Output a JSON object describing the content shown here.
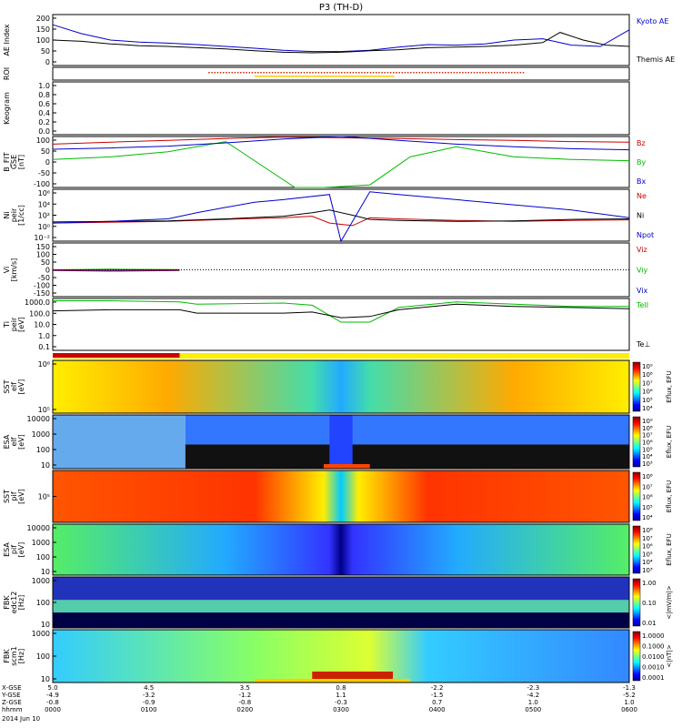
{
  "title": "P3 (TH-D)",
  "colors": {
    "kyoto": "#0000cc",
    "themis": "#000000",
    "red": "#cc0000",
    "green": "#00bb00",
    "blue": "#0000cc",
    "roi_red": "#cc2200",
    "roi_yellow": "#ffcc00"
  },
  "chart_data": [
    {
      "type": "line",
      "id": "ae",
      "ylabel": "AE Index",
      "ylim": [
        0,
        200
      ],
      "yticks": [
        "200",
        "150",
        "100",
        "50",
        "0"
      ],
      "series": [
        {
          "name": "Kyoto AE",
          "color": "#0000cc",
          "x": [
            0,
            5,
            10,
            15,
            20,
            25,
            30,
            35,
            40,
            45,
            50,
            55,
            60,
            65,
            70,
            75,
            80,
            85,
            90,
            95,
            100
          ],
          "y": [
            160,
            125,
            100,
            92,
            88,
            82,
            75,
            68,
            60,
            55,
            55,
            60,
            72,
            82,
            80,
            85,
            100,
            105,
            80,
            75,
            140
          ]
        },
        {
          "name": "Themis AE",
          "color": "#000000",
          "x": [
            0,
            5,
            10,
            15,
            20,
            25,
            30,
            35,
            40,
            45,
            50,
            55,
            60,
            65,
            70,
            75,
            80,
            85,
            88,
            92,
            96,
            100
          ],
          "y": [
            100,
            95,
            85,
            78,
            75,
            70,
            65,
            58,
            52,
            50,
            52,
            58,
            62,
            70,
            72,
            75,
            80,
            90,
            130,
            100,
            80,
            75
          ]
        }
      ]
    },
    {
      "type": "line",
      "id": "roi",
      "ylabel": "ROI",
      "ylim": [
        0,
        1
      ],
      "series": []
    },
    {
      "type": "line",
      "id": "keogram",
      "ylabel": "Keogram",
      "ylim": [
        0,
        1
      ],
      "yticks": [
        "1.0",
        "0.8",
        "0.6",
        "0.4",
        "0.2",
        "0.0"
      ],
      "series": []
    },
    {
      "type": "line",
      "id": "bfit",
      "ylabel": "B_FIT",
      "ylabel2": "GSE",
      "ylabel3": "[nT]",
      "ylim": [
        -100,
        100
      ],
      "yticks": [
        "100",
        "50",
        "0",
        "-50",
        "-100"
      ],
      "series": [
        {
          "name": "Bz",
          "color": "#cc0000",
          "x": [
            0,
            10,
            20,
            30,
            40,
            50,
            60,
            70,
            80,
            90,
            100
          ],
          "y": [
            70,
            78,
            85,
            92,
            98,
            95,
            92,
            88,
            85,
            80,
            78
          ]
        },
        {
          "name": "By",
          "color": "#00bb00",
          "x": [
            0,
            10,
            20,
            30,
            42,
            47,
            55,
            62,
            70,
            80,
            90,
            100
          ],
          "y": [
            10,
            20,
            40,
            80,
            -100,
            -100,
            -90,
            20,
            60,
            20,
            10,
            5
          ]
        },
        {
          "name": "Bx",
          "color": "#0000cc",
          "x": [
            0,
            10,
            20,
            30,
            40,
            50,
            60,
            70,
            80,
            90,
            100
          ],
          "y": [
            50,
            55,
            62,
            75,
            90,
            100,
            85,
            70,
            60,
            52,
            48
          ]
        }
      ]
    },
    {
      "type": "line",
      "id": "ni",
      "ylabel": "Ni",
      "ylabel2": "peir",
      "ylabel3": "[1/cc]",
      "ylim": [
        -4,
        6
      ],
      "yscale": "log",
      "yticks": [
        "10⁶",
        "10⁴",
        "10²",
        "10⁰",
        "10⁻²"
      ],
      "series": [
        {
          "name": "Ne",
          "color": "#cc0000",
          "x": [
            0,
            20,
            30,
            40,
            45,
            48,
            52,
            55,
            60,
            70,
            80,
            90,
            100
          ],
          "y": [
            -0.5,
            -0.2,
            0.2,
            0.5,
            0.8,
            -0.5,
            -1,
            0.5,
            0.3,
            0,
            -0.2,
            0,
            0.1
          ]
        },
        {
          "name": "Ni",
          "color": "#000000",
          "x": [
            0,
            20,
            30,
            40,
            45,
            48,
            52,
            55,
            60,
            70,
            80,
            90,
            100
          ],
          "y": [
            -0.3,
            -0.1,
            0.3,
            0.8,
            1.5,
            2,
            1,
            0.2,
            0,
            -0.2,
            -0.1,
            0.2,
            0.3
          ]
        },
        {
          "name": "Npot",
          "color": "#0000cc",
          "x": [
            0,
            10,
            20,
            25,
            30,
            35,
            40,
            48,
            50,
            55,
            60,
            70,
            80,
            90,
            100
          ],
          "y": [
            -0.5,
            -0.2,
            0.3,
            1.5,
            2.5,
            3.5,
            4,
            5,
            -4,
            5.5,
            5,
            4,
            3,
            2,
            0.5
          ]
        }
      ]
    },
    {
      "type": "line",
      "id": "vi",
      "ylabel": "Vi",
      "ylabel2": "[km/s]",
      "ylim": [
        -200,
        200
      ],
      "yticks": [
        "150",
        "100",
        "50",
        "0",
        "-50",
        "-100",
        "-150"
      ],
      "series": [
        {
          "name": "Viz",
          "color": "#cc0000",
          "x": [
            0,
            10,
            22
          ],
          "y": [
            -5,
            -10,
            -5
          ]
        },
        {
          "name": "Viy",
          "color": "#00bb00",
          "x": [
            0,
            10,
            22
          ],
          "y": [
            0,
            5,
            2
          ]
        },
        {
          "name": "Vix",
          "color": "#0000cc",
          "x": [
            0,
            10,
            22
          ],
          "y": [
            -2,
            -3,
            -2
          ]
        }
      ]
    },
    {
      "type": "line",
      "id": "ti",
      "ylabel": "Ti",
      "ylabel2": "peir",
      "ylabel3": "[eV]",
      "ylim": [
        -1.3,
        3.3
      ],
      "yscale": "log",
      "yticks": [
        "1000.0",
        "100.0",
        "10.0",
        "1.0",
        "0.1"
      ],
      "series": [
        {
          "name": "TeII",
          "color": "#00bb00",
          "x": [
            0,
            10,
            22,
            25,
            40,
            45,
            50,
            55,
            60,
            70,
            80,
            90,
            100
          ],
          "y": [
            3.1,
            3.1,
            3.0,
            2.8,
            2.9,
            2.7,
            1.2,
            1.2,
            2.5,
            3.0,
            2.8,
            2.6,
            2.6
          ]
        },
        {
          "name": "Te⊥",
          "color": "#000000",
          "x": [
            0,
            10,
            22,
            25,
            40,
            45,
            50,
            55,
            60,
            70,
            80,
            90,
            100
          ],
          "y": [
            2.2,
            2.3,
            2.3,
            2.0,
            2.0,
            2.1,
            1.6,
            1.7,
            2.3,
            2.8,
            2.6,
            2.5,
            2.4
          ]
        }
      ]
    },
    {
      "type": "heatmap",
      "id": "sst_e",
      "ylabel": "SST",
      "ylabel2": "elf",
      "ylabel3": "[eV]",
      "yticks": [
        "10⁶",
        "10⁵"
      ],
      "cbar_label": "Eflux, EFU",
      "cbar_ticks": [
        "10⁹",
        "10⁸",
        "10⁷",
        "10⁶",
        "10⁵",
        "10⁴"
      ]
    },
    {
      "type": "heatmap",
      "id": "esa_e",
      "ylabel": "ESA",
      "ylabel2": "elf",
      "ylabel3": "[eV]",
      "yticks": [
        "10000",
        "1000",
        "100",
        "10"
      ],
      "cbar_label": "Eflux, EFU",
      "cbar_ticks": [
        "10⁹",
        "10⁸",
        "10⁷",
        "10⁶",
        "10⁵",
        "10⁴",
        "10³"
      ]
    },
    {
      "type": "heatmap",
      "id": "sst_i",
      "ylabel": "SST",
      "ylabel2": "pif",
      "ylabel3": "[eV]",
      "yticks": [
        "10⁵"
      ],
      "cbar_label": "Eflux, EFU",
      "cbar_ticks": [
        "10⁸",
        "10⁷",
        "10⁶",
        "10⁵",
        "10⁴"
      ]
    },
    {
      "type": "heatmap",
      "id": "esa_i",
      "ylabel": "ESA",
      "ylabel2": "pif",
      "ylabel3": "[eV]",
      "yticks": [
        "10000",
        "1000",
        "100",
        "10"
      ],
      "cbar_label": "Eflux, EFU",
      "cbar_ticks": [
        "10⁸",
        "10⁷",
        "10⁶",
        "10⁵",
        "10⁴",
        "10³"
      ]
    },
    {
      "type": "heatmap",
      "id": "fbk_e",
      "ylabel": "FBK",
      "ylabel2": "edc12",
      "ylabel3": "[Hz]",
      "yticks": [
        "1000",
        "100",
        "10"
      ],
      "cbar_label": "<|mV/m|>",
      "cbar_ticks": [
        "1.00",
        "0.10",
        "0.01"
      ]
    },
    {
      "type": "heatmap",
      "id": "fbk_b",
      "ylabel": "FBK",
      "ylabel2": "scm1",
      "ylabel3": "[Hz]",
      "yticks": [
        "1000",
        "100",
        "10"
      ],
      "cbar_label": "<|nT|>",
      "cbar_ticks": [
        "1.0000",
        "0.1000",
        "0.0100",
        "0.0010",
        "0.0001"
      ]
    }
  ],
  "x_axis": {
    "row_labels": [
      "X-GSE",
      "Y-GSE",
      "Z-GSE",
      "hhmm",
      "2014 Jun 10"
    ],
    "columns": [
      [
        "5.0",
        "-4.9",
        "-0.8",
        "0000"
      ],
      [
        "4.5",
        "-3.2",
        "-0.9",
        "0100"
      ],
      [
        "3.5",
        "-1.2",
        "-0.8",
        "0200"
      ],
      [
        "0.8",
        "1.1",
        "-0.3",
        "0300"
      ],
      [
        "-2.2",
        "-1.5",
        "0.7",
        "0400"
      ],
      [
        "-2.3",
        "-4.2",
        "1.0",
        "0500"
      ],
      [
        "-1.3",
        "-5.2",
        "1.0",
        "0600"
      ]
    ]
  }
}
